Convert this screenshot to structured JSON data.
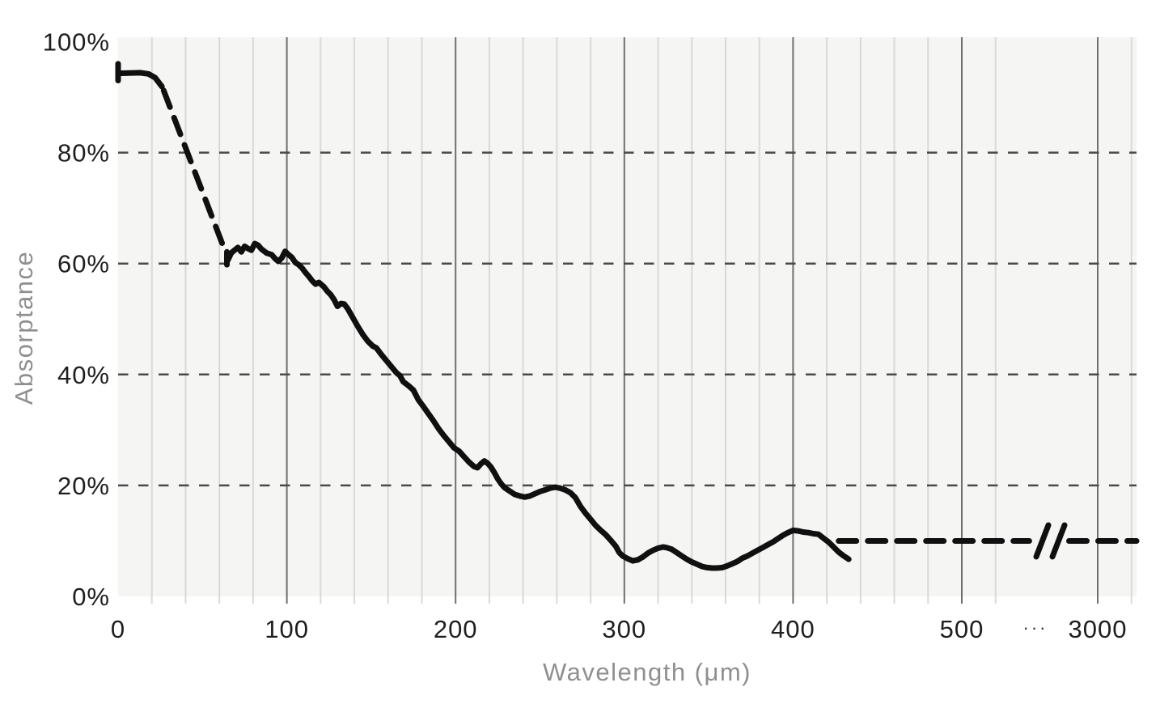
{
  "chart_data": {
    "type": "line",
    "title": "",
    "xlabel": "Wavelength (μm)",
    "ylabel": "Absorptance",
    "x_axis": {
      "min": 0,
      "major_ticks": [
        0,
        100,
        200,
        300,
        400,
        500,
        3000
      ],
      "major_tick_labels": [
        "0",
        "100",
        "200",
        "300",
        "400",
        "500",
        "3000"
      ],
      "minor_tick_step": 20,
      "minor_ticks_range": [
        20,
        520
      ],
      "post_break_minor_tick": 3020,
      "axis_break_between": [
        540,
        3000
      ],
      "axis_break_label": "···",
      "grid": "vertical-solid"
    },
    "y_axis": {
      "min": 0,
      "max": 100,
      "tick_values": [
        0,
        20,
        40,
        60,
        80,
        100
      ],
      "tick_labels": [
        "0%",
        "20%",
        "40%",
        "60%",
        "80%",
        "100%"
      ],
      "dashed_gridlines": [
        20,
        40,
        60,
        80
      ],
      "grid": "horizontal-dashed"
    },
    "legend": "none",
    "series": [
      {
        "name": "absorptance",
        "color": "#101010",
        "segments": [
          {
            "style": "solid",
            "note": "start cap tick",
            "points": [
              [
                0,
                96
              ],
              [
                0,
                93
              ]
            ]
          },
          {
            "style": "solid",
            "points": [
              [
                0,
                94.3
              ],
              [
                13,
                94.4
              ],
              [
                18,
                94.2
              ],
              [
                22,
                93.5
              ],
              [
                26,
                91.9
              ]
            ]
          },
          {
            "style": "dashed",
            "points": [
              [
                27,
                91.2
              ],
              [
                64,
                61.8
              ]
            ]
          },
          {
            "style": "solid",
            "note": "segment start tick",
            "points": [
              [
                64.5,
                62.1
              ],
              [
                64.5,
                59.8
              ]
            ]
          },
          {
            "style": "solid",
            "points": [
              [
                65,
                60.6
              ],
              [
                67,
                61.9
              ],
              [
                69,
                62.4
              ],
              [
                71,
                62.9
              ],
              [
                73,
                62.1
              ],
              [
                75,
                63.1
              ],
              [
                77,
                62.7
              ],
              [
                79,
                62.4
              ],
              [
                81,
                63.6
              ],
              [
                83,
                63.3
              ],
              [
                85,
                62.6
              ],
              [
                88,
                61.9
              ],
              [
                91,
                61.6
              ],
              [
                93,
                60.9
              ],
              [
                95,
                60.4
              ],
              [
                97,
                61.0
              ],
              [
                99,
                62.2
              ],
              [
                101,
                61.6
              ],
              [
                103,
                61.1
              ],
              [
                105,
                60.2
              ],
              [
                107,
                59.8
              ],
              [
                109,
                59.2
              ],
              [
                111,
                58.4
              ],
              [
                113,
                57.7
              ],
              [
                115,
                56.9
              ],
              [
                117,
                56.3
              ],
              [
                119,
                56.6
              ],
              [
                122,
                55.8
              ],
              [
                124,
                55.0
              ],
              [
                126,
                54.4
              ],
              [
                128,
                53.5
              ],
              [
                130,
                52.3
              ],
              [
                132,
                52.8
              ],
              [
                134,
                52.7
              ],
              [
                136,
                51.9
              ],
              [
                139,
                50.3
              ],
              [
                142,
                48.7
              ],
              [
                145,
                47.2
              ],
              [
                148,
                46.0
              ],
              [
                151,
                45.1
              ],
              [
                153,
                44.8
              ],
              [
                156,
                43.6
              ],
              [
                159,
                42.5
              ],
              [
                162,
                41.4
              ],
              [
                165,
                40.3
              ],
              [
                167,
                39.8
              ],
              [
                169,
                38.7
              ],
              [
                172,
                38.0
              ],
              [
                175,
                37.2
              ],
              [
                178,
                35.4
              ],
              [
                181,
                34.2
              ],
              [
                184,
                32.9
              ],
              [
                187,
                31.6
              ],
              [
                190,
                30.2
              ],
              [
                193,
                29.0
              ],
              [
                196,
                27.9
              ],
              [
                199,
                26.8
              ],
              [
                202,
                26.2
              ],
              [
                205,
                25.2
              ],
              [
                208,
                24.2
              ],
              [
                211,
                23.4
              ],
              [
                213,
                23.2
              ],
              [
                215,
                23.9
              ],
              [
                217,
                24.4
              ],
              [
                219,
                24.0
              ],
              [
                221,
                23.3
              ],
              [
                223,
                22.3
              ],
              [
                225,
                21.2
              ],
              [
                227,
                20.3
              ],
              [
                229,
                19.6
              ],
              [
                232,
                19.0
              ],
              [
                235,
                18.4
              ],
              [
                238,
                18.1
              ],
              [
                241,
                17.9
              ],
              [
                244,
                18.1
              ],
              [
                247,
                18.5
              ],
              [
                250,
                18.9
              ],
              [
                253,
                19.2
              ],
              [
                256,
                19.5
              ],
              [
                259,
                19.7
              ],
              [
                262,
                19.5
              ],
              [
                265,
                19.2
              ],
              [
                268,
                18.7
              ],
              [
                271,
                17.8
              ],
              [
                274,
                16.2
              ],
              [
                277,
                15.0
              ],
              [
                280,
                13.9
              ],
              [
                283,
                12.8
              ],
              [
                286,
                11.9
              ],
              [
                289,
                11.1
              ],
              [
                292,
                10.1
              ],
              [
                295,
                9.0
              ],
              [
                297,
                7.9
              ],
              [
                299,
                7.3
              ],
              [
                302,
                6.8
              ],
              [
                305,
                6.4
              ],
              [
                308,
                6.6
              ],
              [
                311,
                7.1
              ],
              [
                314,
                7.8
              ],
              [
                317,
                8.3
              ],
              [
                320,
                8.7
              ],
              [
                323,
                8.9
              ],
              [
                325,
                8.8
              ],
              [
                328,
                8.5
              ],
              [
                331,
                7.9
              ],
              [
                334,
                7.3
              ],
              [
                337,
                6.7
              ],
              [
                340,
                6.2
              ],
              [
                343,
                5.8
              ],
              [
                346,
                5.4
              ],
              [
                349,
                5.2
              ],
              [
                352,
                5.1
              ],
              [
                355,
                5.1
              ],
              [
                358,
                5.2
              ],
              [
                361,
                5.5
              ],
              [
                364,
                5.9
              ],
              [
                367,
                6.3
              ],
              [
                370,
                6.9
              ],
              [
                373,
                7.3
              ],
              [
                376,
                7.8
              ],
              [
                379,
                8.3
              ],
              [
                382,
                8.8
              ],
              [
                385,
                9.3
              ],
              [
                388,
                9.8
              ],
              [
                391,
                10.4
              ],
              [
                394,
                11.0
              ],
              [
                397,
                11.5
              ],
              [
                400,
                11.9
              ],
              [
                403,
                11.8
              ],
              [
                406,
                11.6
              ],
              [
                409,
                11.5
              ],
              [
                412,
                11.3
              ],
              [
                415,
                11.2
              ],
              [
                418,
                10.5
              ],
              [
                421,
                9.8
              ],
              [
                424,
                8.9
              ],
              [
                427,
                8.0
              ],
              [
                430,
                7.3
              ],
              [
                433,
                6.7
              ]
            ]
          },
          {
            "style": "dashed",
            "note": "10% extension before axis break",
            "points": [
              [
                427,
                10
              ],
              [
                540,
                10
              ]
            ]
          },
          {
            "style": "dashed",
            "note": "10% extension after axis break",
            "points": [
              [
                2983,
                10
              ],
              [
                3023,
                10
              ]
            ]
          }
        ]
      }
    ],
    "annotations": {
      "axis_break_marker": {
        "type": "double-slash",
        "y_value": 10,
        "between_x": [
          540,
          3000
        ]
      }
    }
  },
  "colors": {
    "line": "#101010",
    "plot_background": "#f5f5f3",
    "grid_minor": "#d9d9d9",
    "grid_major": "#6f6f6f",
    "grid_dashed_horizontal": "#4a4a4a",
    "tick_label": "#1e1e1e",
    "axis_title": "#8f8f8f",
    "gap_dots": "#2a2a2a"
  }
}
